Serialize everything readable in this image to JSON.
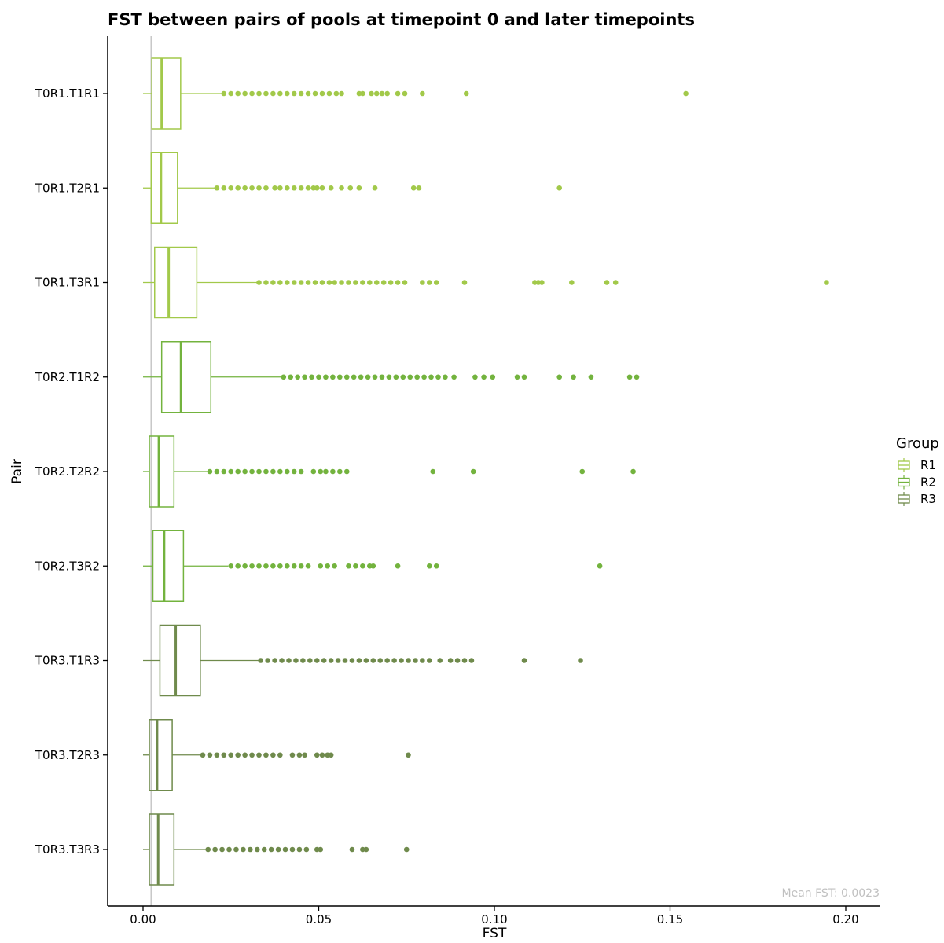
{
  "chart_data": {
    "type": "boxplot",
    "orientation": "horizontal",
    "title": "FST between pairs of pools at timepoint 0 and later timepoints",
    "xlabel": "FST",
    "ylabel": "Pair",
    "xlim": [
      -0.01,
      0.21
    ],
    "x_ticks": [
      0.0,
      0.05,
      0.1,
      0.15,
      0.2
    ],
    "x_tick_labels": [
      "0.00",
      "0.05",
      "0.10",
      "0.15",
      "0.20"
    ],
    "reference_line": 0.0023,
    "annotation": "Mean FST: 0.0023",
    "legend": {
      "title": "Group",
      "position": "right",
      "entries": [
        {
          "label": "R1",
          "color": "#a2c94a"
        },
        {
          "label": "R2",
          "color": "#73b33e"
        },
        {
          "label": "R3",
          "color": "#6f8a4c"
        }
      ]
    },
    "categories": [
      "T0R1.T1R1",
      "T0R1.T2R1",
      "T0R1.T3R1",
      "T0R2.T1R2",
      "T0R2.T2R2",
      "T0R2.T3R2",
      "T0R3.T1R3",
      "T0R3.T2R3",
      "T0R3.T3R3"
    ],
    "boxes": [
      {
        "group": "R1",
        "whisker_low": 0.0,
        "q1": 0.0025,
        "median": 0.0053,
        "q3": 0.0107,
        "whisker_high": 0.0227,
        "outliers": [
          0.023,
          0.025,
          0.027,
          0.029,
          0.031,
          0.033,
          0.035,
          0.037,
          0.039,
          0.041,
          0.043,
          0.045,
          0.047,
          0.049,
          0.051,
          0.053,
          0.055,
          0.0565,
          0.0615,
          0.0625,
          0.065,
          0.0665,
          0.068,
          0.0695,
          0.0725,
          0.0745,
          0.0795,
          0.092,
          0.1545
        ]
      },
      {
        "group": "R1",
        "whisker_low": 0.0,
        "q1": 0.0023,
        "median": 0.0051,
        "q3": 0.0098,
        "whisker_high": 0.0207,
        "outliers": [
          0.021,
          0.023,
          0.025,
          0.027,
          0.029,
          0.031,
          0.033,
          0.035,
          0.0375,
          0.039,
          0.041,
          0.043,
          0.045,
          0.047,
          0.0485,
          0.0495,
          0.051,
          0.0535,
          0.0565,
          0.059,
          0.0615,
          0.066,
          0.077,
          0.0785,
          0.1185
        ]
      },
      {
        "group": "R1",
        "whisker_low": 0.0,
        "q1": 0.0033,
        "median": 0.0073,
        "q3": 0.0153,
        "whisker_high": 0.0327,
        "outliers": [
          0.033,
          0.035,
          0.037,
          0.039,
          0.041,
          0.043,
          0.045,
          0.047,
          0.049,
          0.051,
          0.053,
          0.0545,
          0.0565,
          0.0585,
          0.0605,
          0.0625,
          0.0645,
          0.0665,
          0.0685,
          0.0705,
          0.0725,
          0.0745,
          0.0795,
          0.0815,
          0.0835,
          0.0915,
          0.1115,
          0.1125,
          0.1135,
          0.122,
          0.132,
          0.1345,
          0.1945
        ]
      },
      {
        "group": "R2",
        "whisker_low": 0.0,
        "q1": 0.0053,
        "median": 0.0108,
        "q3": 0.0193,
        "whisker_high": 0.0397,
        "outliers": [
          0.04,
          0.042,
          0.044,
          0.046,
          0.048,
          0.05,
          0.052,
          0.054,
          0.056,
          0.058,
          0.06,
          0.062,
          0.064,
          0.066,
          0.068,
          0.07,
          0.072,
          0.074,
          0.076,
          0.078,
          0.08,
          0.082,
          0.084,
          0.086,
          0.0885,
          0.0945,
          0.097,
          0.0995,
          0.1065,
          0.1085,
          0.1185,
          0.1225,
          0.1275,
          0.1385,
          0.1405
        ]
      },
      {
        "group": "R2",
        "whisker_low": 0.0,
        "q1": 0.0018,
        "median": 0.0045,
        "q3": 0.0088,
        "whisker_high": 0.0185,
        "outliers": [
          0.019,
          0.021,
          0.023,
          0.025,
          0.027,
          0.029,
          0.031,
          0.033,
          0.035,
          0.037,
          0.039,
          0.041,
          0.043,
          0.045,
          0.0485,
          0.0505,
          0.052,
          0.054,
          0.056,
          0.058,
          0.0825,
          0.094,
          0.125,
          0.1395
        ]
      },
      {
        "group": "R2",
        "whisker_low": 0.0,
        "q1": 0.0028,
        "median": 0.006,
        "q3": 0.0115,
        "whisker_high": 0.0242,
        "outliers": [
          0.025,
          0.027,
          0.029,
          0.031,
          0.033,
          0.035,
          0.037,
          0.039,
          0.041,
          0.043,
          0.045,
          0.047,
          0.0505,
          0.0525,
          0.0545,
          0.0585,
          0.0605,
          0.0625,
          0.0645,
          0.0655,
          0.0725,
          0.0815,
          0.0835,
          0.13
        ]
      },
      {
        "group": "R3",
        "whisker_low": 0.0,
        "q1": 0.0048,
        "median": 0.0093,
        "q3": 0.0163,
        "whisker_high": 0.0332,
        "outliers": [
          0.0335,
          0.0355,
          0.0375,
          0.0395,
          0.0415,
          0.0435,
          0.0455,
          0.0475,
          0.0495,
          0.0515,
          0.0535,
          0.0555,
          0.0575,
          0.0595,
          0.0615,
          0.0635,
          0.0655,
          0.0675,
          0.0695,
          0.0715,
          0.0735,
          0.0755,
          0.0775,
          0.0795,
          0.0815,
          0.0845,
          0.0875,
          0.0895,
          0.0915,
          0.0935,
          0.1085,
          0.1245
        ]
      },
      {
        "group": "R3",
        "whisker_low": 0.0,
        "q1": 0.0018,
        "median": 0.004,
        "q3": 0.0083,
        "whisker_high": 0.0168,
        "outliers": [
          0.017,
          0.019,
          0.021,
          0.023,
          0.025,
          0.027,
          0.029,
          0.031,
          0.033,
          0.035,
          0.037,
          0.039,
          0.0425,
          0.0445,
          0.046,
          0.0495,
          0.051,
          0.0525,
          0.0535,
          0.0755
        ]
      },
      {
        "group": "R3",
        "whisker_low": 0.0,
        "q1": 0.0018,
        "median": 0.0043,
        "q3": 0.0088,
        "whisker_high": 0.0182,
        "outliers": [
          0.0185,
          0.0205,
          0.0225,
          0.0245,
          0.0265,
          0.0285,
          0.0305,
          0.0325,
          0.0345,
          0.0365,
          0.0385,
          0.0405,
          0.0425,
          0.0445,
          0.0465,
          0.0495,
          0.0505,
          0.0595,
          0.0625,
          0.0635,
          0.075
        ]
      }
    ]
  }
}
